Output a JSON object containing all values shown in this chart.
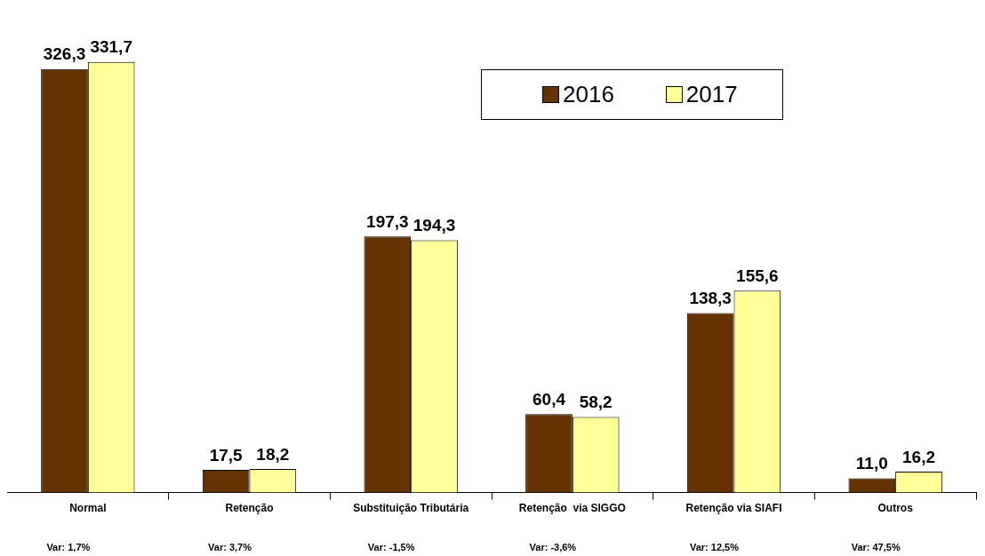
{
  "chart_data": {
    "type": "bar",
    "categories": [
      "Normal",
      "Retenção",
      "Substituição Tributária",
      "Retenção  via SIGGO",
      "Retenção via SIAFI",
      "Outros"
    ],
    "series": [
      {
        "name": "2016",
        "color": "#663300",
        "values": [
          326.3,
          17.5,
          197.3,
          60.4,
          138.3,
          11.0
        ],
        "value_labels": [
          "326,3",
          "17,5",
          "197,3",
          "60,4",
          "138,3",
          "11,0"
        ]
      },
      {
        "name": "2017",
        "color": "#ffff99",
        "values": [
          331.7,
          18.2,
          194.3,
          58.2,
          155.6,
          16.2
        ],
        "value_labels": [
          "331,7",
          "18,2",
          "194,3",
          "58,2",
          "155,6",
          "16,2"
        ]
      }
    ],
    "annotations": [
      "Var: 1,7%",
      "Var: 3,7%",
      "Var: -1,5%",
      "Var: -3,6%",
      "Var: 12,5%",
      "Var: 47,5%"
    ],
    "legend": "top right"
  }
}
